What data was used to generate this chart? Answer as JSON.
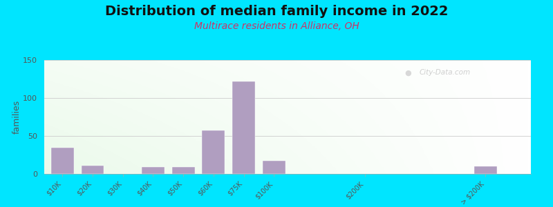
{
  "title": "Distribution of median family income in 2022",
  "subtitle": "Multirace residents in Alliance, OH",
  "ylabel": "families",
  "title_fontsize": 14,
  "subtitle_fontsize": 10,
  "subtitle_color": "#cc3366",
  "background_outer": "#00e5ff",
  "bar_color": "#b09ec0",
  "categories": [
    "$10K",
    "$20K",
    "$30K",
    "$40K",
    "$50K",
    "$60K",
    "$75K",
    "$100K",
    "$200K",
    "> $200K"
  ],
  "values": [
    35,
    11,
    0,
    9,
    9,
    57,
    122,
    17,
    0,
    10
  ],
  "ylim": [
    0,
    150
  ],
  "yticks": [
    0,
    50,
    100,
    150
  ],
  "grid_color": "#cccccc",
  "watermark": "City-Data.com",
  "bar_positions": [
    0,
    1,
    2,
    3,
    4,
    5,
    6,
    7,
    10,
    14
  ],
  "bar_width": 0.75,
  "xlim_left": -0.6,
  "xlim_right": 15.5
}
